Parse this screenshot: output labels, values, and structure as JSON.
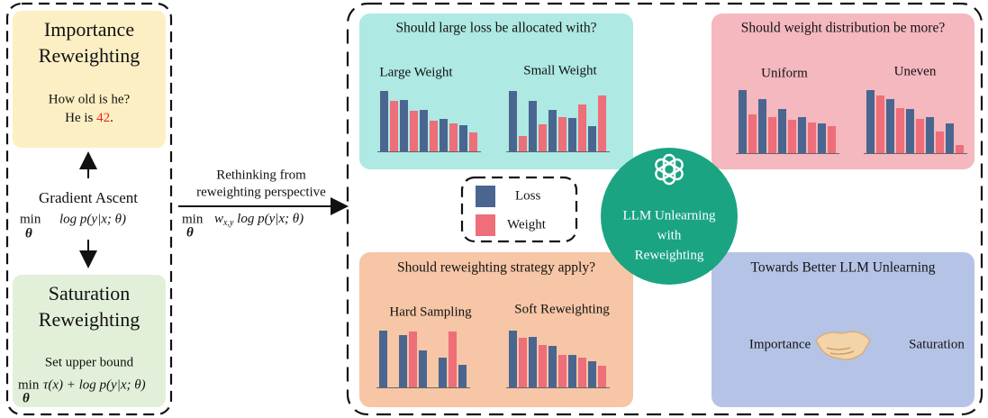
{
  "left": {
    "importance": {
      "title": [
        "Importance",
        "Reweighting"
      ],
      "question": "How old is he?",
      "answer": [
        "He is ",
        "42",
        "."
      ]
    },
    "gradient_ascent": {
      "title": "Gradient Ascent",
      "formula": {
        "op": "min",
        "sub": "θ",
        "body": "log p(y|x; θ)"
      }
    },
    "saturation": {
      "title": [
        "Saturation",
        "Reweighting"
      ],
      "note": "Set upper bound",
      "formula": {
        "op": "min",
        "sub": "θ",
        "body": "τ(x) + log p(y|x; θ)"
      }
    }
  },
  "arrow": {
    "text": [
      "Rethinking from",
      "reweighting perspective"
    ],
    "formula": {
      "op": "min",
      "sub": "θ",
      "body": "w",
      "body_sub": "x,y",
      "body_rest": " log p(y|x; θ)"
    }
  },
  "panels": {
    "loss": {
      "title": "Should large loss be allocated with?",
      "options": [
        "Large Weight",
        "Small Weight"
      ]
    },
    "distribution": {
      "title": "Should weight distribution be more?",
      "options": [
        "Uniform",
        "Uneven"
      ]
    },
    "strategy": {
      "title": "Should reweighting strategy apply?",
      "options": [
        "Hard Sampling",
        "Soft Reweighting"
      ]
    },
    "towards": {
      "title": "Towards Better LLM Unlearning",
      "left": "Importance",
      "right": "Saturation"
    }
  },
  "legend": [
    "Loss",
    "Weight"
  ],
  "center": [
    "LLM Unlearning",
    "with",
    "Reweighting"
  ]
}
